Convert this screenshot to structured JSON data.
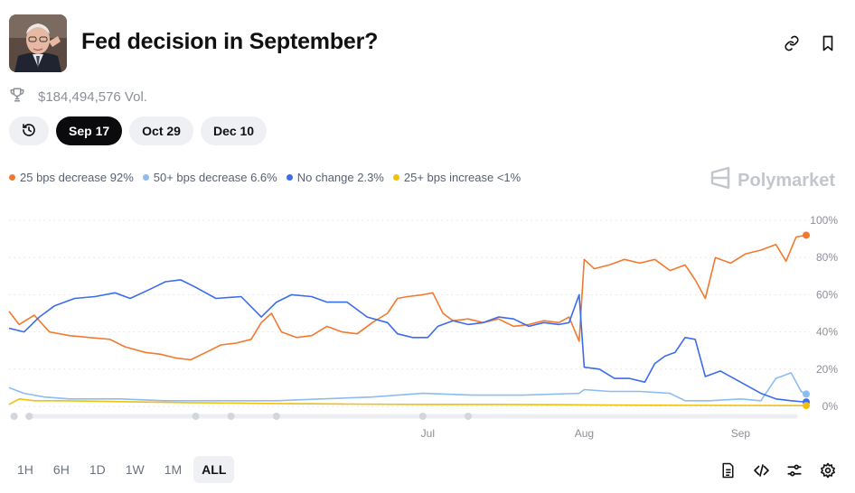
{
  "header": {
    "title": "Fed decision in September?",
    "volume": "$184,494,576 Vol."
  },
  "date_tabs": [
    {
      "label": "Sep 17",
      "active": true
    },
    {
      "label": "Oct 29",
      "active": false
    },
    {
      "label": "Dec 10",
      "active": false
    }
  ],
  "legend": [
    {
      "label": "25 bps decrease 92%",
      "color": "#f2792f"
    },
    {
      "label": "50+ bps decrease 6.6%",
      "color": "#8bbcf2"
    },
    {
      "label": "No change 2.3%",
      "color": "#3b6cea"
    },
    {
      "label": "25+ bps increase <1%",
      "color": "#f2bf0c"
    }
  ],
  "brand": "Polymarket",
  "range_tabs": [
    {
      "label": "1H",
      "active": false
    },
    {
      "label": "6H",
      "active": false
    },
    {
      "label": "1D",
      "active": false
    },
    {
      "label": "1W",
      "active": false
    },
    {
      "label": "1M",
      "active": false
    },
    {
      "label": "ALL",
      "active": true
    }
  ],
  "chart_data": {
    "type": "line",
    "x_ticks": [
      {
        "label": "Jul",
        "date": "2025-07-01"
      },
      {
        "label": "Aug",
        "date": "2025-08-01"
      },
      {
        "label": "Sep",
        "date": "2025-09-01"
      }
    ],
    "x_range": [
      "2025-04-09",
      "2025-09-14"
    ],
    "y_ticks": [
      "100%",
      "80%",
      "60%",
      "40%",
      "20%",
      "0%"
    ],
    "ylim": [
      0,
      100
    ],
    "grid": true,
    "series": [
      {
        "name": "25 bps decrease",
        "color": "#f2792f",
        "points": [
          [
            "2025-04-09",
            51
          ],
          [
            "2025-04-11",
            44
          ],
          [
            "2025-04-14",
            49
          ],
          [
            "2025-04-17",
            40
          ],
          [
            "2025-04-21",
            38
          ],
          [
            "2025-04-25",
            37
          ],
          [
            "2025-04-29",
            36
          ],
          [
            "2025-05-02",
            32
          ],
          [
            "2025-05-06",
            29
          ],
          [
            "2025-05-09",
            28
          ],
          [
            "2025-05-12",
            26
          ],
          [
            "2025-05-15",
            25
          ],
          [
            "2025-05-18",
            29
          ],
          [
            "2025-05-21",
            33
          ],
          [
            "2025-05-24",
            34
          ],
          [
            "2025-05-27",
            36
          ],
          [
            "2025-05-29",
            45
          ],
          [
            "2025-05-31",
            50
          ],
          [
            "2025-06-02",
            40
          ],
          [
            "2025-06-05",
            37
          ],
          [
            "2025-06-08",
            38
          ],
          [
            "2025-06-11",
            43
          ],
          [
            "2025-06-14",
            40
          ],
          [
            "2025-06-17",
            39
          ],
          [
            "2025-06-20",
            45
          ],
          [
            "2025-06-23",
            50
          ],
          [
            "2025-06-25",
            58
          ],
          [
            "2025-06-27",
            59
          ],
          [
            "2025-06-30",
            60
          ],
          [
            "2025-07-02",
            61
          ],
          [
            "2025-07-04",
            50
          ],
          [
            "2025-07-06",
            46
          ],
          [
            "2025-07-09",
            47
          ],
          [
            "2025-07-12",
            45
          ],
          [
            "2025-07-15",
            47
          ],
          [
            "2025-07-18",
            43
          ],
          [
            "2025-07-21",
            44
          ],
          [
            "2025-07-24",
            46
          ],
          [
            "2025-07-27",
            45
          ],
          [
            "2025-07-29",
            48
          ],
          [
            "2025-07-31",
            35
          ],
          [
            "2025-08-01",
            79
          ],
          [
            "2025-08-03",
            74
          ],
          [
            "2025-08-06",
            76
          ],
          [
            "2025-08-09",
            79
          ],
          [
            "2025-08-12",
            77
          ],
          [
            "2025-08-15",
            79
          ],
          [
            "2025-08-18",
            73
          ],
          [
            "2025-08-21",
            76
          ],
          [
            "2025-08-23",
            68
          ],
          [
            "2025-08-25",
            58
          ],
          [
            "2025-08-27",
            80
          ],
          [
            "2025-08-30",
            77
          ],
          [
            "2025-09-02",
            82
          ],
          [
            "2025-09-05",
            84
          ],
          [
            "2025-09-08",
            87
          ],
          [
            "2025-09-10",
            78
          ],
          [
            "2025-09-12",
            91
          ],
          [
            "2025-09-14",
            92
          ]
        ]
      },
      {
        "name": "50+ bps decrease",
        "color": "#8bbcf2",
        "points": [
          [
            "2025-04-09",
            10
          ],
          [
            "2025-04-12",
            7
          ],
          [
            "2025-04-16",
            5
          ],
          [
            "2025-04-21",
            4
          ],
          [
            "2025-05-01",
            4
          ],
          [
            "2025-05-10",
            3
          ],
          [
            "2025-05-20",
            3
          ],
          [
            "2025-06-01",
            3
          ],
          [
            "2025-06-10",
            4
          ],
          [
            "2025-06-20",
            5
          ],
          [
            "2025-06-30",
            7
          ],
          [
            "2025-07-10",
            6
          ],
          [
            "2025-07-20",
            6
          ],
          [
            "2025-07-31",
            7
          ],
          [
            "2025-08-01",
            9
          ],
          [
            "2025-08-06",
            8
          ],
          [
            "2025-08-12",
            8
          ],
          [
            "2025-08-18",
            7
          ],
          [
            "2025-08-21",
            3
          ],
          [
            "2025-08-26",
            3
          ],
          [
            "2025-09-01",
            4
          ],
          [
            "2025-09-05",
            3
          ],
          [
            "2025-09-08",
            15
          ],
          [
            "2025-09-11",
            18
          ],
          [
            "2025-09-13",
            8
          ],
          [
            "2025-09-14",
            6.6
          ]
        ]
      },
      {
        "name": "No change",
        "color": "#3b6cea",
        "points": [
          [
            "2025-04-09",
            42
          ],
          [
            "2025-04-12",
            40
          ],
          [
            "2025-04-15",
            48
          ],
          [
            "2025-04-18",
            54
          ],
          [
            "2025-04-22",
            58
          ],
          [
            "2025-04-26",
            59
          ],
          [
            "2025-04-30",
            61
          ],
          [
            "2025-05-03",
            58
          ],
          [
            "2025-05-07",
            63
          ],
          [
            "2025-05-10",
            67
          ],
          [
            "2025-05-13",
            68
          ],
          [
            "2025-05-16",
            64
          ],
          [
            "2025-05-20",
            58
          ],
          [
            "2025-05-25",
            59
          ],
          [
            "2025-05-29",
            48
          ],
          [
            "2025-06-01",
            56
          ],
          [
            "2025-06-04",
            60
          ],
          [
            "2025-06-08",
            59
          ],
          [
            "2025-06-11",
            56
          ],
          [
            "2025-06-15",
            56
          ],
          [
            "2025-06-19",
            48
          ],
          [
            "2025-06-23",
            45
          ],
          [
            "2025-06-25",
            39
          ],
          [
            "2025-06-28",
            37
          ],
          [
            "2025-07-01",
            37
          ],
          [
            "2025-07-03",
            43
          ],
          [
            "2025-07-06",
            46
          ],
          [
            "2025-07-09",
            44
          ],
          [
            "2025-07-12",
            45
          ],
          [
            "2025-07-15",
            48
          ],
          [
            "2025-07-18",
            47
          ],
          [
            "2025-07-21",
            43
          ],
          [
            "2025-07-24",
            45
          ],
          [
            "2025-07-27",
            44
          ],
          [
            "2025-07-29",
            45
          ],
          [
            "2025-07-31",
            60
          ],
          [
            "2025-08-01",
            21
          ],
          [
            "2025-08-04",
            20
          ],
          [
            "2025-08-07",
            15
          ],
          [
            "2025-08-10",
            15
          ],
          [
            "2025-08-13",
            13
          ],
          [
            "2025-08-15",
            23
          ],
          [
            "2025-08-17",
            27
          ],
          [
            "2025-08-19",
            29
          ],
          [
            "2025-08-21",
            37
          ],
          [
            "2025-08-23",
            36
          ],
          [
            "2025-08-25",
            16
          ],
          [
            "2025-08-28",
            19
          ],
          [
            "2025-09-01",
            13
          ],
          [
            "2025-09-05",
            7
          ],
          [
            "2025-09-08",
            4
          ],
          [
            "2025-09-11",
            3
          ],
          [
            "2025-09-14",
            2.3
          ]
        ]
      },
      {
        "name": "25+ bps increase",
        "color": "#f2bf0c",
        "points": [
          [
            "2025-04-09",
            1
          ],
          [
            "2025-04-11",
            4
          ],
          [
            "2025-04-14",
            3
          ],
          [
            "2025-04-20",
            3
          ],
          [
            "2025-05-01",
            2.5
          ],
          [
            "2025-05-15",
            2
          ],
          [
            "2025-06-01",
            1.5
          ],
          [
            "2025-06-15",
            1.2
          ],
          [
            "2025-07-01",
            1
          ],
          [
            "2025-07-15",
            1
          ],
          [
            "2025-08-01",
            0.8
          ],
          [
            "2025-08-15",
            0.6
          ],
          [
            "2025-09-01",
            0.5
          ],
          [
            "2025-09-14",
            0.4
          ]
        ]
      }
    ]
  }
}
